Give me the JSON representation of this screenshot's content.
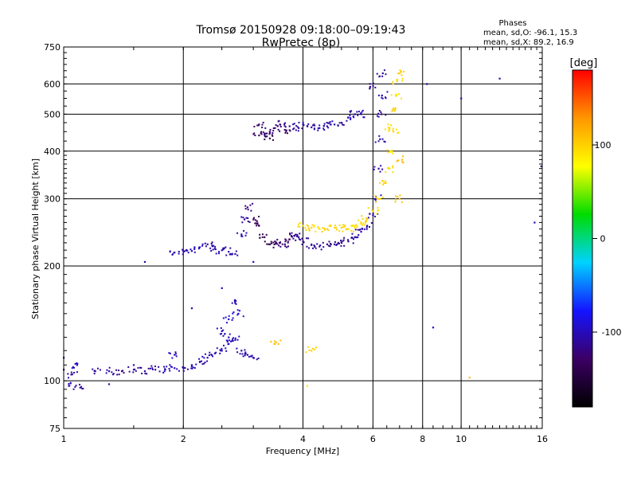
{
  "header": {
    "title": "Tromsø 20150928 09:18:00–09:19:43",
    "subtitle": "RwPretec (8p)"
  },
  "phase_box": {
    "heading": "Phases",
    "line_o": "mean, sd,O: -96.1, 15.3",
    "line_x": "mean, sd,X: 89.2, 16.9"
  },
  "colorbar": {
    "unit": "[deg]",
    "ticks": [
      {
        "value": 100,
        "label": "100"
      },
      {
        "value": 0,
        "label": "0"
      },
      {
        "value": -100,
        "label": "-100"
      }
    ],
    "range": [
      -180,
      180
    ],
    "colors": [
      "#000000",
      "#3c0064",
      "#1414ff",
      "#00d2ff",
      "#00dc00",
      "#ffff00",
      "#ff9600",
      "#ff0000"
    ]
  },
  "chart_data": {
    "type": "scatter",
    "xlabel": "Frequency [MHz]",
    "ylabel": "Stationary phase Virtual Height [km]",
    "x_scale": "log",
    "y_scale": "log",
    "xlim": [
      1,
      16
    ],
    "ylim": [
      75,
      750
    ],
    "x_ticks": [
      {
        "value": 1,
        "label": "1"
      },
      {
        "value": 2,
        "label": "2"
      },
      {
        "value": 4,
        "label": "4"
      },
      {
        "value": 6,
        "label": "6"
      },
      {
        "value": 8,
        "label": "8"
      },
      {
        "value": 10,
        "label": "10"
      },
      {
        "value": 16,
        "label": "16"
      }
    ],
    "y_ticks": [
      {
        "value": 75,
        "label": "75"
      },
      {
        "value": 100,
        "label": "100"
      },
      {
        "value": 200,
        "label": "200"
      },
      {
        "value": 300,
        "label": "300"
      },
      {
        "value": 400,
        "label": "400"
      },
      {
        "value": 500,
        "label": "500"
      },
      {
        "value": 600,
        "label": "600"
      },
      {
        "value": 750,
        "label": "750"
      }
    ],
    "grid": true,
    "color_scale": "phase (deg)",
    "series": [
      {
        "points": [
          [
            1.0,
            107,
            -115
          ],
          [
            1.03,
            97,
            -105
          ],
          [
            1.05,
            104,
            -110
          ],
          [
            1.08,
            110,
            -100
          ],
          [
            1.1,
            96,
            -110
          ],
          [
            1.2,
            106,
            -110
          ],
          [
            1.3,
            106,
            -105
          ],
          [
            1.4,
            106,
            -120
          ],
          [
            1.5,
            107,
            -110
          ],
          [
            1.6,
            106,
            -115
          ],
          [
            1.7,
            107,
            -110
          ],
          [
            1.8,
            107,
            -105
          ],
          [
            1.9,
            108,
            -100
          ],
          [
            2.0,
            108,
            -110
          ],
          [
            2.1,
            110,
            -100
          ],
          [
            2.2,
            112,
            -110
          ],
          [
            2.3,
            115,
            -100
          ],
          [
            2.4,
            118,
            -105
          ],
          [
            2.5,
            120,
            -100
          ],
          [
            2.6,
            125,
            -95
          ],
          [
            2.7,
            128,
            -100
          ],
          [
            2.8,
            120,
            -110
          ],
          [
            2.9,
            117,
            -100
          ],
          [
            3.0,
            115,
            -105
          ],
          [
            2.5,
            135,
            -100
          ],
          [
            2.6,
            145,
            -95
          ],
          [
            2.7,
            160,
            -100
          ],
          [
            2.75,
            150,
            -90
          ],
          [
            2.6,
            130,
            -105
          ],
          [
            1.9,
            117,
            -100
          ],
          [
            1.0,
            115,
            -110
          ]
        ]
      },
      {
        "points": [
          [
            1.9,
            217,
            -105
          ],
          [
            2.0,
            218,
            -110
          ],
          [
            2.1,
            219,
            -100
          ],
          [
            2.2,
            224,
            -100
          ],
          [
            2.3,
            228,
            -110
          ],
          [
            2.4,
            222,
            -105
          ],
          [
            2.5,
            220,
            -100
          ],
          [
            2.6,
            218,
            -110
          ],
          [
            2.7,
            215,
            -105
          ],
          [
            2.8,
            242,
            -100
          ],
          [
            2.85,
            265,
            -110
          ],
          [
            2.9,
            285,
            -120
          ],
          [
            3.0,
            265,
            -130
          ],
          [
            3.1,
            255,
            -135
          ],
          [
            3.2,
            238,
            -140
          ],
          [
            3.3,
            228,
            -145
          ],
          [
            3.4,
            232,
            -130
          ],
          [
            3.5,
            230,
            -125
          ],
          [
            3.6,
            228,
            -120
          ],
          [
            3.7,
            235,
            -130
          ],
          [
            3.8,
            240,
            -115
          ],
          [
            3.9,
            238,
            -110
          ],
          [
            4.0,
            232,
            -110
          ],
          [
            4.2,
            227,
            -115
          ],
          [
            4.4,
            225,
            -110
          ],
          [
            4.6,
            228,
            -120
          ],
          [
            4.8,
            228,
            -110
          ],
          [
            5.0,
            230,
            -115
          ],
          [
            5.2,
            232,
            -110
          ],
          [
            5.4,
            238,
            -105
          ],
          [
            5.6,
            246,
            -110
          ],
          [
            5.8,
            255,
            -105
          ],
          [
            6.0,
            272,
            -110
          ],
          [
            6.1,
            300,
            -100
          ],
          [
            6.2,
            360,
            -110
          ],
          [
            6.25,
            430,
            -105
          ],
          [
            6.3,
            500,
            -110
          ],
          [
            6.32,
            560,
            -105
          ],
          [
            6.35,
            640,
            -110
          ]
        ]
      },
      {
        "points": [
          [
            3.1,
            440,
            -130
          ],
          [
            3.2,
            445,
            -125
          ],
          [
            3.3,
            450,
            -120
          ],
          [
            3.4,
            460,
            -125
          ],
          [
            3.5,
            470,
            -120
          ],
          [
            3.7,
            465,
            -110
          ],
          [
            3.9,
            460,
            -110
          ],
          [
            4.0,
            470,
            -105
          ],
          [
            4.2,
            462,
            -110
          ],
          [
            4.4,
            460,
            -100
          ],
          [
            4.6,
            465,
            -110
          ],
          [
            4.8,
            470,
            -105
          ],
          [
            5.0,
            475,
            -110
          ],
          [
            5.2,
            490,
            -100
          ],
          [
            5.4,
            500,
            -110
          ],
          [
            5.6,
            500,
            -100
          ],
          [
            5.9,
            590,
            -110
          ],
          [
            3.1,
            470,
            -130
          ],
          [
            3.3,
            432,
            -140
          ],
          [
            3.6,
            455,
            -130
          ]
        ]
      },
      {
        "points": [
          [
            4.0,
            255,
            95
          ],
          [
            4.2,
            252,
            100
          ],
          [
            4.4,
            250,
            90
          ],
          [
            4.6,
            250,
            100
          ],
          [
            4.8,
            252,
            95
          ],
          [
            5.0,
            252,
            100
          ],
          [
            5.2,
            250,
            95
          ],
          [
            5.4,
            252,
            90
          ],
          [
            5.6,
            258,
            95
          ],
          [
            5.8,
            265,
            100
          ],
          [
            6.0,
            278,
            90
          ],
          [
            6.2,
            300,
            95
          ],
          [
            6.4,
            330,
            100
          ],
          [
            6.6,
            360,
            95
          ],
          [
            6.7,
            400,
            90
          ],
          [
            6.75,
            450,
            95
          ],
          [
            6.8,
            510,
            100
          ],
          [
            6.85,
            560,
            90
          ],
          [
            6.9,
            610,
            95
          ],
          [
            7.0,
            640,
            100
          ],
          [
            7.0,
            300,
            105
          ],
          [
            7.1,
            380,
            110
          ],
          [
            6.6,
            460,
            95
          ],
          [
            3.4,
            125,
            110
          ],
          [
            4.2,
            120,
            100
          ]
        ]
      },
      {
        "points": [
          [
            1.6,
            205,
            -105
          ],
          [
            2.5,
            175,
            -100
          ],
          [
            3.0,
            205,
            -95
          ],
          [
            4.1,
            97,
            90
          ],
          [
            8.2,
            600,
            -110
          ],
          [
            10.0,
            550,
            -110
          ],
          [
            10.5,
            102,
            110
          ],
          [
            12.5,
            620,
            -110
          ],
          [
            15.3,
            260,
            -105
          ],
          [
            15.9,
            365,
            -120
          ],
          [
            8.5,
            138,
            -100
          ],
          [
            2.1,
            155,
            -100
          ],
          [
            1.5,
            110,
            -100
          ],
          [
            1.3,
            98,
            -100
          ]
        ]
      }
    ]
  }
}
